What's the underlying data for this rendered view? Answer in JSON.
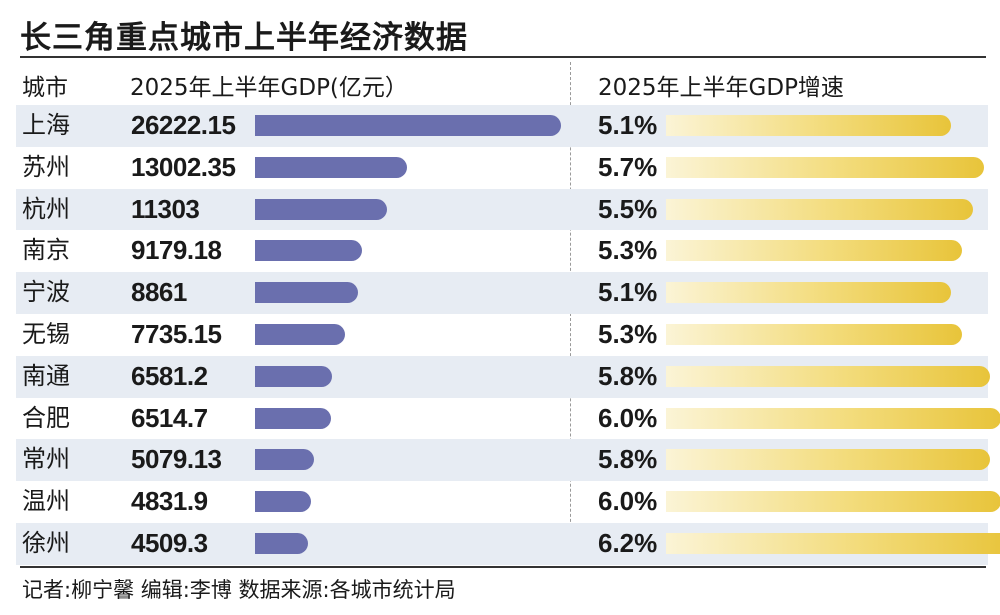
{
  "title": "长三角重点城市上半年经济数据",
  "headers": {
    "city": "城市",
    "gdp": "2025年上半年GDP(亿元）",
    "growth": "2025年上半年GDP增速"
  },
  "credit": "记者:柳宁馨   编辑:李博   数据来源:各城市统计局",
  "colors": {
    "gdp_bar": "#6a6fae",
    "growth_bar": "#e8c43a",
    "row_stripe": "#e7ecf3"
  },
  "chart_data": {
    "type": "bar",
    "categories": [
      "上海",
      "苏州",
      "杭州",
      "南京",
      "宁波",
      "无锡",
      "南通",
      "合肥",
      "常州",
      "温州",
      "徐州"
    ],
    "series": [
      {
        "name": "2025年上半年GDP(亿元）",
        "values": [
          26222.15,
          13002.35,
          11303,
          9179.18,
          8861,
          7735.15,
          6581.2,
          6514.7,
          5079.13,
          4831.9,
          4509.3
        ],
        "labels": [
          "26222.15",
          "13002.35",
          "11303",
          "9179.18",
          "8861",
          "7735.15",
          "6581.2",
          "6514.7",
          "5079.13",
          "4831.9",
          "4509.3"
        ]
      },
      {
        "name": "2025年上半年GDP增速",
        "values": [
          5.1,
          5.7,
          5.5,
          5.3,
          5.1,
          5.3,
          5.8,
          6.0,
          5.8,
          6.0,
          6.2
        ],
        "labels": [
          "5.1%",
          "5.7%",
          "5.5%",
          "5.3%",
          "5.1%",
          "5.3%",
          "5.8%",
          "6.0%",
          "5.8%",
          "6.0%",
          "6.2%"
        ]
      }
    ]
  }
}
